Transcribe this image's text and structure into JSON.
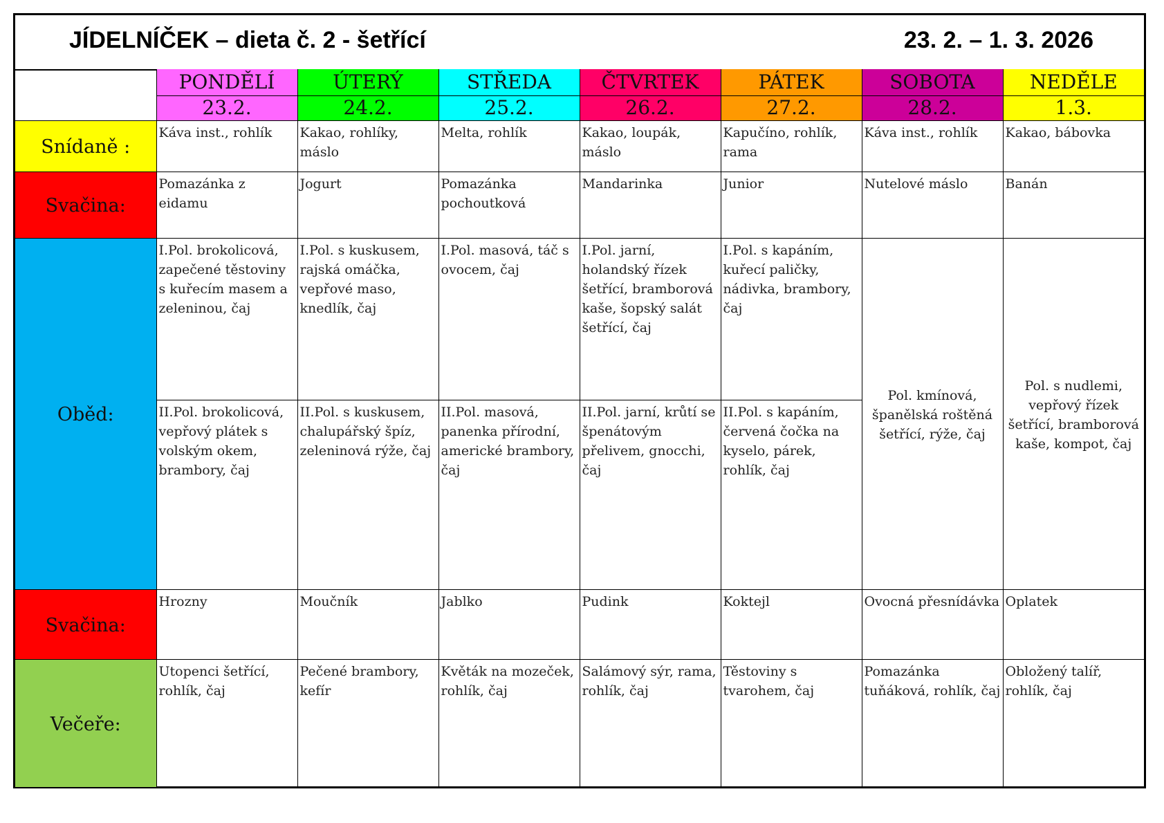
{
  "header": {
    "title": "JÍDELNÍČEK – dieta č. 2 - šetřící",
    "date_range": "23. 2. – 1. 3. 2026"
  },
  "days": [
    {
      "name": "PONDĚLÍ",
      "date": "23.2.",
      "color": "#ff66ff"
    },
    {
      "name": "ÚTERÝ",
      "date": "24.2.",
      "color": "#00ff00"
    },
    {
      "name": "STŘEDA",
      "date": "25.2.",
      "color": "#00ffff"
    },
    {
      "name": "ČTVRTEK",
      "date": "26.2.",
      "color": "#ff0066"
    },
    {
      "name": "PÁTEK",
      "date": "27.2.",
      "color": "#ff9900"
    },
    {
      "name": "SOBOTA",
      "date": "28.2.",
      "color": "#cc0099"
    },
    {
      "name": "NEDĚLE",
      "date": "1.3.",
      "color": "#ffff00"
    }
  ],
  "meals": {
    "snidane": {
      "label": "Snídaně :",
      "color": "#ffff00",
      "items": [
        "Káva inst., rohlík",
        "Kakao, rohlíky, máslo",
        "Melta, rohlík",
        "Kakao, loupák, máslo",
        "Kapučíno, rohlík, rama",
        "Káva inst., rohlík",
        "Kakao, bábovka"
      ]
    },
    "svacina1": {
      "label": "Svačina:",
      "color": "#ff0000",
      "items": [
        "Pomazánka z eidamu",
        "Jogurt",
        "Pomazánka pochoutková",
        "Mandarinka",
        "Junior",
        "Nutelové máslo",
        "Banán"
      ]
    },
    "obed": {
      "label": "Oběd:",
      "color": "#00b0f0",
      "first": [
        "I.Pol. brokolicová, zapečené těstoviny s kuřecím masem a zeleninou, čaj",
        "I.Pol. s kuskusem, rajská omáčka, vepřové maso, knedlík, čaj",
        "I.Pol. masová, táč s ovocem, čaj",
        "I.Pol. jarní, holandský řízek šetřící, bramborová kaše, šopský salát šetřící, čaj",
        "I.Pol. s kapáním, kuřecí paličky, nádivka, brambory, čaj"
      ],
      "second": [
        "II.Pol. brokolicová, vepřový plátek s volským okem, brambory, čaj",
        "II.Pol. s kuskusem, chalupářský špíz, zeleninová rýže, čaj",
        "II.Pol. masová, panenka přírodní, americké brambory, čaj",
        "II.Pol. jarní, krůtí se špenátovým přelivem, gnocchi, čaj",
        "II.Pol. s kapáním, červená čočka na kyselo, párek, rohlík, čaj"
      ],
      "weekend": [
        "Pol. kmínová, španělská roštěná šetřící, rýže, čaj",
        "Pol. s nudlemi, vepřový řízek šetřící, bramborová kaše, kompot, čaj"
      ]
    },
    "svacina2": {
      "label": "Svačina:",
      "color": "#ff0000",
      "items": [
        "Hrozny",
        "Moučník",
        "Jablko",
        "Pudink",
        "Koktejl",
        "Ovocná přesnídávka",
        "Oplatek"
      ]
    },
    "vecere": {
      "label": "Večeře:",
      "color": "#92d050",
      "items": [
        "Utopenci šetřící, rohlík, čaj",
        "Pečené brambory, kefír",
        "Květák na mozeček, rohlík, čaj",
        "Salámový sýr, rama, rohlík, čaj",
        "Těstoviny s tvarohem, čaj",
        "Pomazánka tuňáková, rohlík, čaj",
        "Obložený talíř, rohlík, čaj"
      ]
    }
  }
}
